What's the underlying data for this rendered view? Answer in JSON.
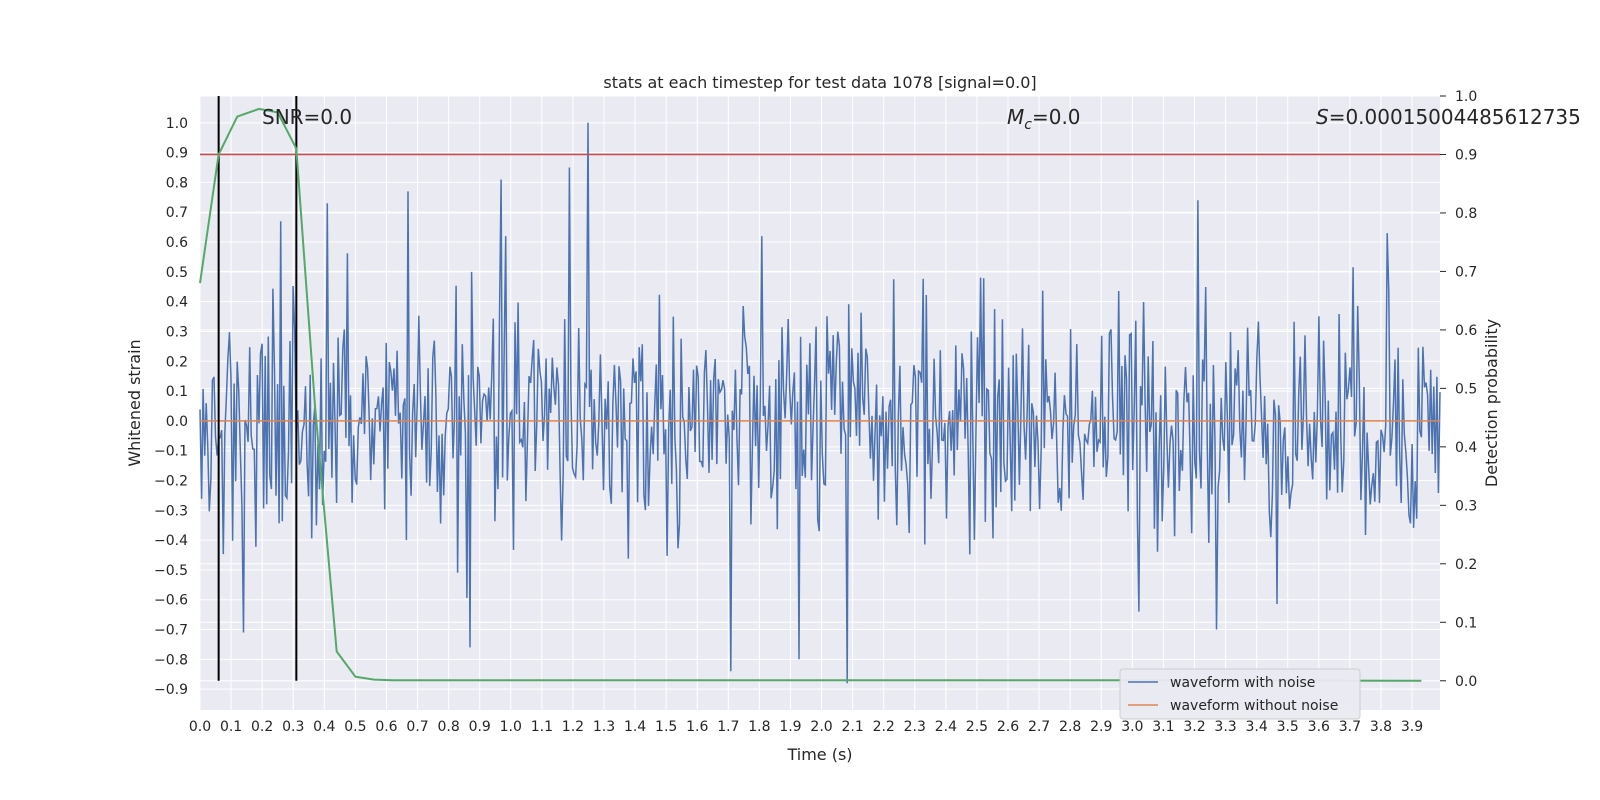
{
  "chart_data": {
    "type": "line",
    "title": "stats at each timestep for test data 1078 [signal=0.0]",
    "xlabel": "Time (s)",
    "ylabel": "Whitened strain",
    "y2label": "Detection probability",
    "xlim": [
      0.0,
      3.99
    ],
    "ylim": [
      -0.97,
      1.09
    ],
    "y2lim": [
      -0.05,
      1.0
    ],
    "xticks": [
      "0.0",
      "0.1",
      "0.2",
      "0.3",
      "0.4",
      "0.5",
      "0.6",
      "0.7",
      "0.8",
      "0.9",
      "1.0",
      "1.1",
      "1.2",
      "1.3",
      "1.4",
      "1.5",
      "1.6",
      "1.7",
      "1.8",
      "1.9",
      "2.0",
      "2.1",
      "2.2",
      "2.3",
      "2.4",
      "2.5",
      "2.6",
      "2.7",
      "2.8",
      "2.9",
      "3.0",
      "3.1",
      "3.2",
      "3.3",
      "3.4",
      "3.5",
      "3.6",
      "3.7",
      "3.8",
      "3.9"
    ],
    "yticks": [
      "1.0",
      "0.9",
      "0.8",
      "0.7",
      "0.6",
      "0.5",
      "0.4",
      "0.3",
      "0.2",
      "0.1",
      "0.0",
      "-0.1",
      "-0.2",
      "-0.3",
      "-0.4",
      "-0.5",
      "-0.6",
      "-0.7",
      "-0.8",
      "-0.9"
    ],
    "y2ticks": [
      "1.0",
      "0.9",
      "0.8",
      "0.7",
      "0.6",
      "0.5",
      "0.4",
      "0.3",
      "0.2",
      "0.1",
      "0.0"
    ],
    "grid": true,
    "legend_position": "lower-right",
    "annotations": {
      "snr": "SNR=0.0",
      "mc_symbol": "M",
      "mc_sub": "c",
      "mc_value": "=0.0",
      "s_symbol": "S",
      "s_value": "=0.00015004485612735"
    },
    "series": [
      {
        "name": "waveform with noise",
        "color": "#4c72b0",
        "axis": "left",
        "x_start": 0.0,
        "x_end": 3.99,
        "sample_count": 800,
        "std": 0.2,
        "peaks": [
          {
            "x": 1.25,
            "y": 1.0
          },
          {
            "x": 1.19,
            "y": 0.85
          },
          {
            "x": 0.97,
            "y": 0.81
          },
          {
            "x": 0.67,
            "y": 0.77
          },
          {
            "x": 0.41,
            "y": 0.73
          },
          {
            "x": 3.21,
            "y": 0.74
          },
          {
            "x": 0.26,
            "y": 0.67
          },
          {
            "x": 3.82,
            "y": 0.63
          },
          {
            "x": 2.08,
            "y": -0.88
          },
          {
            "x": 1.71,
            "y": -0.84
          },
          {
            "x": 1.93,
            "y": -0.8
          },
          {
            "x": 0.87,
            "y": -0.76
          },
          {
            "x": 0.14,
            "y": -0.71
          },
          {
            "x": 3.02,
            "y": -0.64
          },
          {
            "x": 3.27,
            "y": -0.7
          }
        ]
      },
      {
        "name": "waveform without noise",
        "color": "#dd8452",
        "axis": "left",
        "x": [
          0.0,
          3.99
        ],
        "values": [
          0.0,
          0.0
        ]
      },
      {
        "color": "#55a868",
        "axis": "right",
        "x": [
          0.0,
          0.06,
          0.12,
          0.19,
          0.25,
          0.31,
          0.37,
          0.44,
          0.5,
          0.56,
          0.62,
          0.75,
          1.0,
          1.5,
          2.0,
          3.0,
          3.93
        ],
        "values": [
          0.68,
          0.9,
          0.965,
          0.978,
          0.972,
          0.91,
          0.47,
          0.05,
          0.007,
          0.002,
          0.001,
          0.001,
          0.001,
          0.001,
          0.001,
          0.001,
          0.0
        ]
      },
      {
        "color": "#c44e52",
        "axis": "right",
        "x": [
          0.0,
          3.99
        ],
        "values": [
          0.9,
          0.9
        ]
      }
    ],
    "vlines": [
      {
        "x": 0.06,
        "y_min": 0.0,
        "y_max": 1.0,
        "color": "#000000"
      },
      {
        "x": 0.31,
        "y_min": 0.0,
        "y_max": 1.0,
        "color": "#000000"
      }
    ],
    "colors": {
      "plot_background": "#eaeaf2",
      "grid": "#ffffff",
      "text": "#262626"
    }
  }
}
